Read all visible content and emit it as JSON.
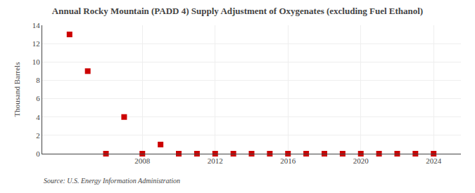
{
  "chart_data": {
    "type": "scatter",
    "title": "Annual Rocky Mountain (PADD 4) Supply Adjustment of Oxygenates (excluding Fuel Ethanol)",
    "y_label": "Thousand Barrels",
    "annotations": [
      "Source: U.S. Energy Information Administration"
    ],
    "x": [
      2004,
      2005,
      2006,
      2007,
      2008,
      2009,
      2010,
      2011,
      2012,
      2013,
      2014,
      2015,
      2016,
      2017,
      2018,
      2019,
      2020,
      2021,
      2022,
      2023,
      2024
    ],
    "values": [
      13,
      9,
      0,
      4,
      0,
      1,
      0,
      0,
      0,
      0,
      0,
      0,
      0,
      0,
      0,
      0,
      0,
      0,
      0,
      0,
      0
    ],
    "color": "#cc0000",
    "marker": "square",
    "xlim": [
      2002.5,
      2025.5
    ],
    "xticks": [
      2008,
      2012,
      2016,
      2020,
      2024
    ],
    "ylim": [
      0,
      14
    ],
    "yticks": [
      0,
      2,
      4,
      6,
      8,
      10,
      12,
      14
    ],
    "grid": true
  }
}
